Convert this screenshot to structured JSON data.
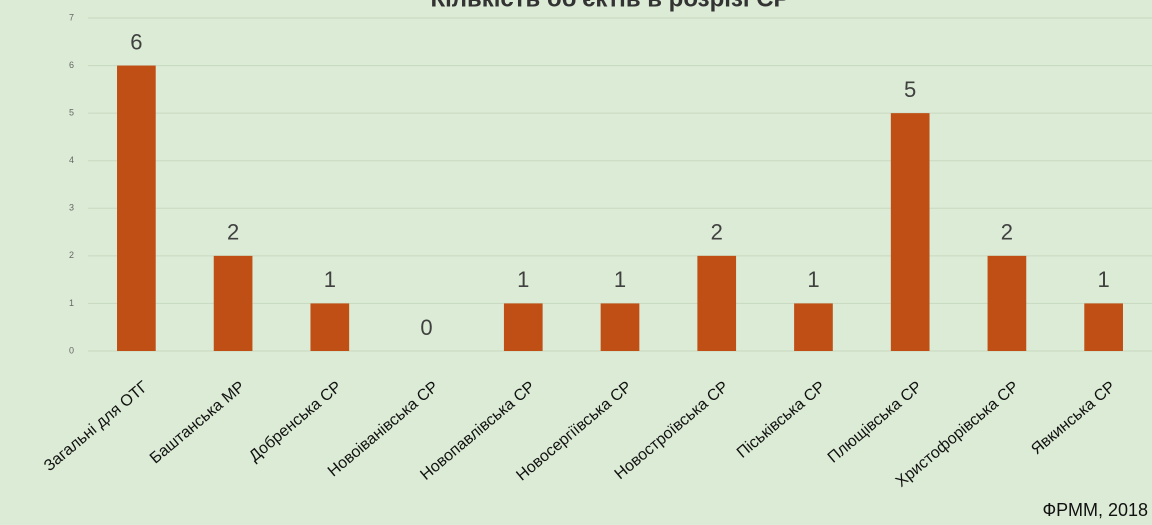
{
  "chart_data": {
    "type": "bar",
    "title": "Кількість об'єктів в розрізі СР",
    "categories": [
      "Загальні для ОТГ",
      "Баштанська МР",
      "Добренська СР",
      "Новоіванівська СР",
      "Новопавлівська СР",
      "Новосергіївська СР",
      "Новостроївська СР",
      "Піськівська СР",
      "Плющівська СР",
      "Христофорівська СР",
      "Явкинська СР"
    ],
    "values": [
      6,
      2,
      1,
      0,
      1,
      1,
      2,
      1,
      5,
      2,
      1
    ],
    "color": "#c04f15",
    "ylim": [
      0,
      7
    ],
    "yticks": [
      0,
      1,
      2,
      3,
      4,
      5,
      6,
      7
    ],
    "grid": true,
    "source": "ФРММ, 2018"
  }
}
